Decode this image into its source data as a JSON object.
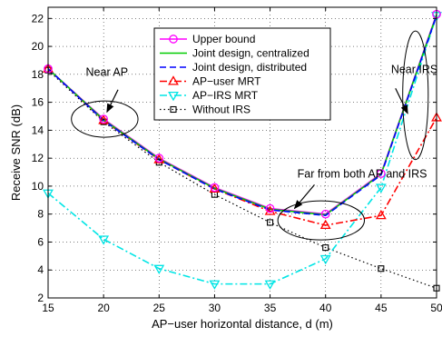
{
  "chart_data": {
    "type": "line",
    "xlabel": "AP−user horizontal distance, d (m)",
    "ylabel": "Receive SNR (dB)",
    "xlim": [
      15,
      50
    ],
    "ylim": [
      2,
      22.8
    ],
    "x": [
      15,
      20,
      25,
      30,
      35,
      40,
      45,
      50
    ],
    "xticks": [
      15,
      20,
      25,
      30,
      35,
      40,
      45,
      50
    ],
    "yticks": [
      2,
      4,
      6,
      8,
      10,
      12,
      14,
      16,
      18,
      20,
      22
    ],
    "grid": true,
    "legend_position": "top-center",
    "series": [
      {
        "name": "Upper bound",
        "color": "#ff00ff",
        "style": "solid",
        "marker": "circle",
        "values": [
          18.4,
          14.8,
          12.0,
          9.9,
          8.4,
          8.0,
          10.9,
          22.3
        ]
      },
      {
        "name": "Joint design, centralized",
        "color": "#00cc00",
        "style": "solid",
        "marker": "none",
        "values": [
          18.4,
          14.75,
          11.95,
          9.85,
          8.35,
          7.95,
          10.85,
          22.25
        ]
      },
      {
        "name": "Joint design, distributed",
        "color": "#0000ff",
        "style": "dashed",
        "marker": "none",
        "values": [
          18.4,
          14.7,
          11.9,
          9.8,
          8.3,
          7.9,
          10.8,
          22.2
        ]
      },
      {
        "name": "AP−user MRT",
        "color": "#ff0000",
        "style": "dashdot",
        "marker": "triangle-up",
        "values": [
          18.4,
          14.7,
          11.9,
          9.8,
          8.2,
          7.2,
          7.9,
          14.9
        ]
      },
      {
        "name": "AP−IRS MRT",
        "color": "#00e5e5",
        "style": "dashdot",
        "marker": "triangle-down",
        "values": [
          9.5,
          6.2,
          4.1,
          3.0,
          3.0,
          4.8,
          9.9,
          22.2
        ]
      },
      {
        "name": "Without IRS",
        "color": "#000000",
        "style": "dotted",
        "marker": "square",
        "values": [
          18.3,
          14.6,
          11.7,
          9.4,
          7.4,
          5.6,
          4.1,
          2.7
        ]
      }
    ],
    "annotations": [
      {
        "text": "Near AP",
        "ellipse": {
          "cx": 20.1,
          "cy": 14.8,
          "rx": 3.0,
          "ry": 1.3
        },
        "arrow_from": [
          21.3,
          16.9
        ],
        "arrow_to": [
          20.3,
          15.3
        ],
        "text_at": [
          20.3,
          17.9
        ]
      },
      {
        "text": "Far from both AP and IRS",
        "ellipse": {
          "cx": 39.6,
          "cy": 7.55,
          "rx": 3.9,
          "ry": 1.4
        },
        "arrow_from": [
          39.0,
          10.1
        ],
        "arrow_to": [
          37.2,
          8.4
        ],
        "text_at": [
          43.3,
          10.6
        ]
      },
      {
        "text": "Near IRS",
        "ellipse": {
          "cx": 48.1,
          "cy": 16.5,
          "rx": 1.15,
          "ry": 4.6
        },
        "arrow_from": [
          46.3,
          17.0
        ],
        "arrow_to": [
          47.4,
          15.2
        ],
        "text_at": [
          48.0,
          18.1
        ]
      }
    ]
  }
}
